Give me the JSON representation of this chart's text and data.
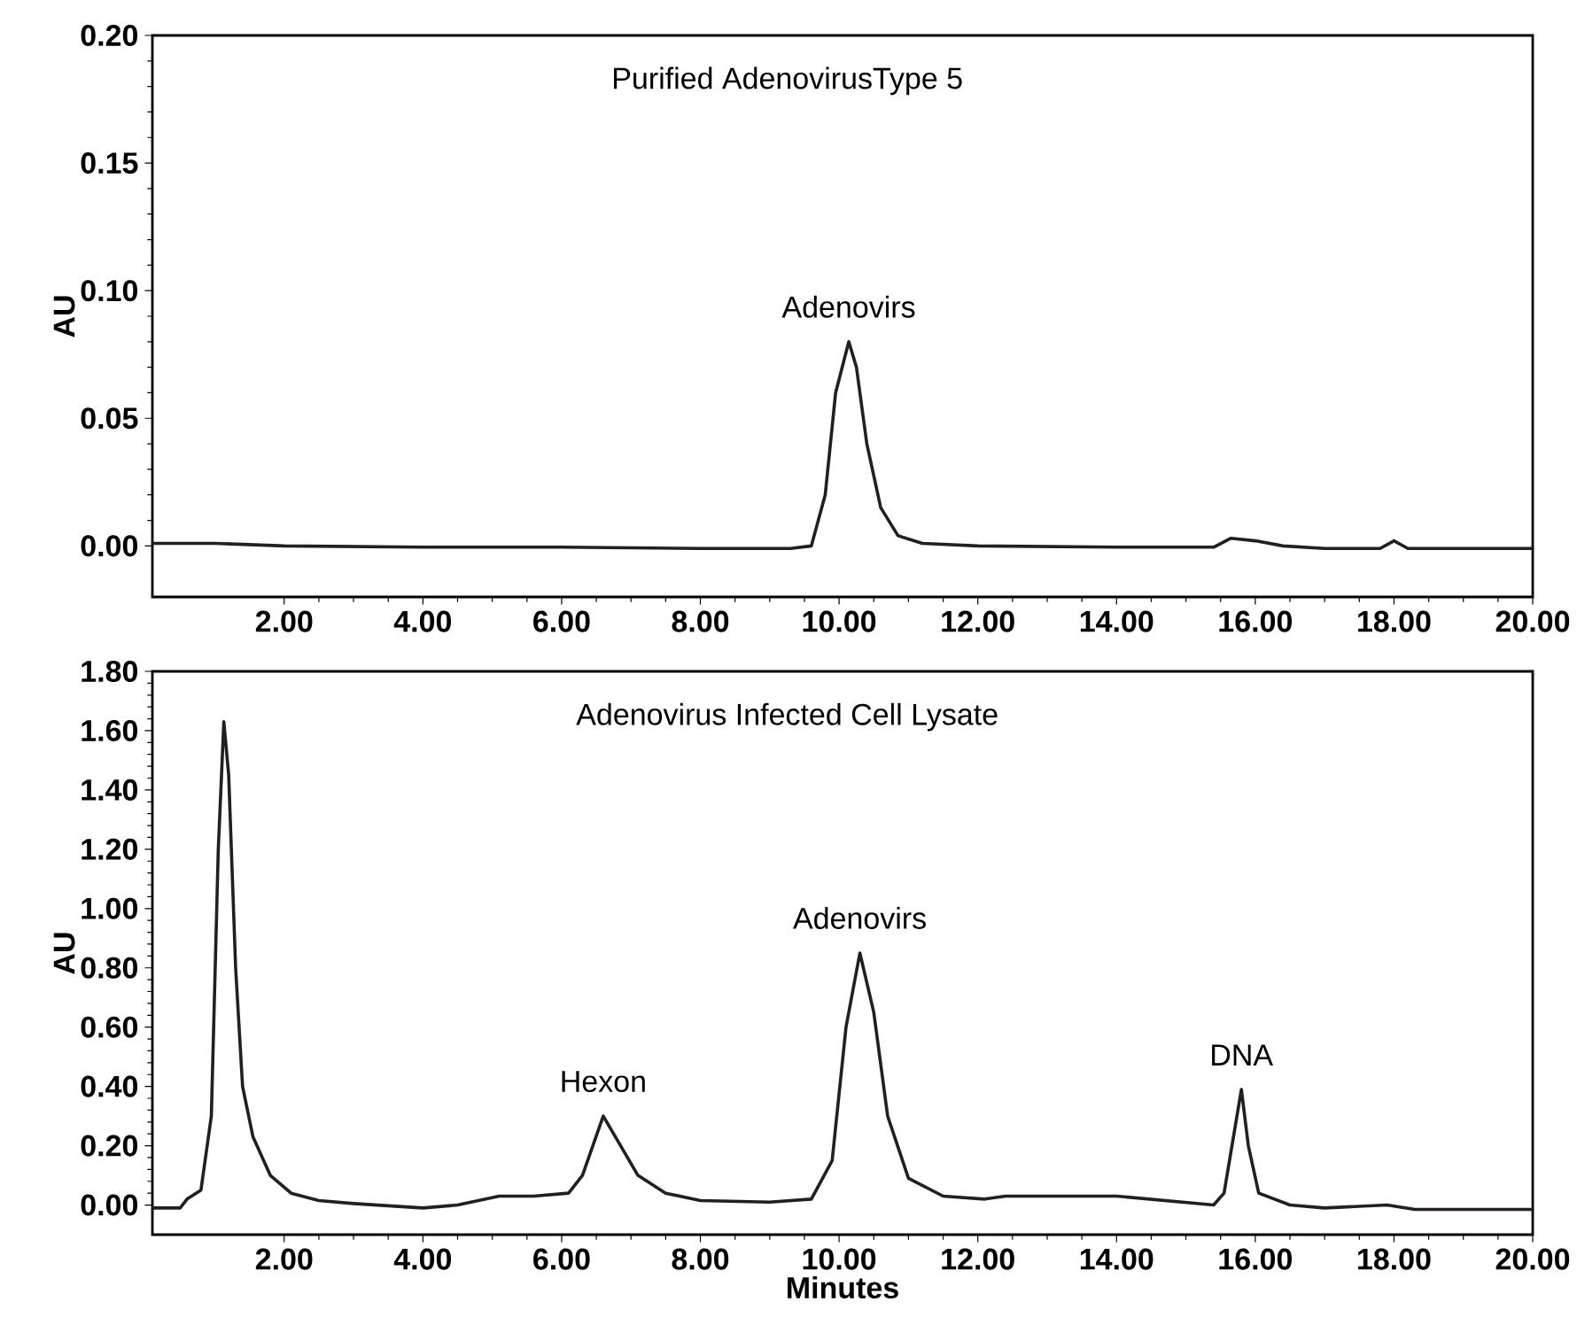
{
  "chart_data": [
    {
      "type": "line",
      "title": "Purified AdenovirusType 5",
      "ylabel": "AU",
      "color": "#231f20",
      "line_style": "solid",
      "marker": "none",
      "xlim": [
        0.1,
        20
      ],
      "ylim": [
        -0.02,
        0.2
      ],
      "xticks": [
        {
          "value": 2,
          "label": "2.00"
        },
        {
          "value": 4,
          "label": "4.00"
        },
        {
          "value": 6,
          "label": "6.00"
        },
        {
          "value": 8,
          "label": "8.00"
        },
        {
          "value": 10,
          "label": "10.00"
        },
        {
          "value": 12,
          "label": "12.00"
        },
        {
          "value": 14,
          "label": "14.00"
        },
        {
          "value": 16,
          "label": "16.00"
        },
        {
          "value": 18,
          "label": "18.00"
        },
        {
          "value": 20,
          "label": "20.00"
        }
      ],
      "yticks": [
        {
          "value": 0,
          "label": "0.00"
        },
        {
          "value": 0.05,
          "label": "0.05"
        },
        {
          "value": 0.1,
          "label": "0.10"
        },
        {
          "value": 0.15,
          "label": "0.15"
        },
        {
          "value": 0.2,
          "label": "0.20"
        }
      ],
      "x": [
        0.1,
        1.0,
        2.0,
        4,
        6,
        8,
        9.3,
        9.6,
        9.8,
        9.95,
        10.14,
        10.25,
        10.4,
        10.6,
        10.85,
        11.2,
        12,
        14,
        15.4,
        15.65,
        16.0,
        16.4,
        17,
        17.8,
        18.0,
        18.2,
        20
      ],
      "values": [
        0.001,
        0.001,
        0.0,
        -0.0005,
        -0.0005,
        -0.001,
        -0.001,
        0.0,
        0.02,
        0.06,
        0.08,
        0.07,
        0.04,
        0.015,
        0.004,
        0.001,
        0.0,
        -0.0005,
        -0.0005,
        0.003,
        0.002,
        0.0,
        -0.001,
        -0.001,
        0.002,
        -0.001,
        -0.001
      ],
      "annotations": [
        {
          "text": "Adenovirs",
          "x": 10.14,
          "y": 0.08
        }
      ]
    },
    {
      "type": "line",
      "title": "Adenovirus Infected Cell Lysate",
      "xlabel": "Minutes",
      "ylabel": "AU",
      "color": "#231f20",
      "line_style": "solid",
      "marker": "none",
      "xlim": [
        0.1,
        20
      ],
      "ylim": [
        -0.1,
        1.8
      ],
      "xticks": [
        {
          "value": 2,
          "label": "2.00"
        },
        {
          "value": 4,
          "label": "4.00"
        },
        {
          "value": 6,
          "label": "6.00"
        },
        {
          "value": 8,
          "label": "8.00"
        },
        {
          "value": 10,
          "label": "10.00"
        },
        {
          "value": 12,
          "label": "12.00"
        },
        {
          "value": 14,
          "label": "14.00"
        },
        {
          "value": 16,
          "label": "16.00"
        },
        {
          "value": 18,
          "label": "18.00"
        },
        {
          "value": 20,
          "label": "20.00"
        }
      ],
      "yticks": [
        {
          "value": 0,
          "label": "0.00"
        },
        {
          "value": 0.2,
          "label": "0.20"
        },
        {
          "value": 0.4,
          "label": "0.40"
        },
        {
          "value": 0.6,
          "label": "0.60"
        },
        {
          "value": 0.8,
          "label": "0.80"
        },
        {
          "value": 1.0,
          "label": "1.00"
        },
        {
          "value": 1.2,
          "label": "1.20"
        },
        {
          "value": 1.4,
          "label": "1.40"
        },
        {
          "value": 1.6,
          "label": "1.60"
        },
        {
          "value": 1.8,
          "label": "1.80"
        }
      ],
      "x": [
        0.1,
        0.5,
        0.6,
        0.8,
        0.95,
        1.05,
        1.13,
        1.2,
        1.3,
        1.4,
        1.55,
        1.8,
        2.1,
        2.5,
        3,
        4,
        4.5,
        5.1,
        5.6,
        6.1,
        6.3,
        6.6,
        6.8,
        7.1,
        7.5,
        8,
        9,
        9.6,
        9.9,
        10.1,
        10.3,
        10.5,
        10.7,
        11,
        11.5,
        12.1,
        12.4,
        12.9,
        14,
        15.4,
        15.55,
        15.7,
        15.8,
        15.9,
        16.05,
        16.5,
        17,
        17.9,
        18.3,
        20
      ],
      "values": [
        -0.01,
        -0.01,
        0.02,
        0.05,
        0.3,
        1.2,
        1.63,
        1.45,
        0.8,
        0.4,
        0.23,
        0.1,
        0.04,
        0.015,
        0.005,
        -0.01,
        0.0,
        0.03,
        0.03,
        0.04,
        0.1,
        0.3,
        0.22,
        0.1,
        0.04,
        0.015,
        0.01,
        0.02,
        0.15,
        0.6,
        0.85,
        0.65,
        0.3,
        0.09,
        0.03,
        0.02,
        0.03,
        0.03,
        0.03,
        0.0,
        0.04,
        0.25,
        0.39,
        0.2,
        0.04,
        0.0,
        -0.01,
        0.0,
        -0.015,
        -0.015
      ],
      "annotations": [
        {
          "text": "Hexon",
          "x": 6.6,
          "y": 0.3
        },
        {
          "text": "Adenovirs",
          "x": 10.3,
          "y": 0.85
        },
        {
          "text": "DNA",
          "x": 15.8,
          "y": 0.39
        }
      ]
    }
  ]
}
